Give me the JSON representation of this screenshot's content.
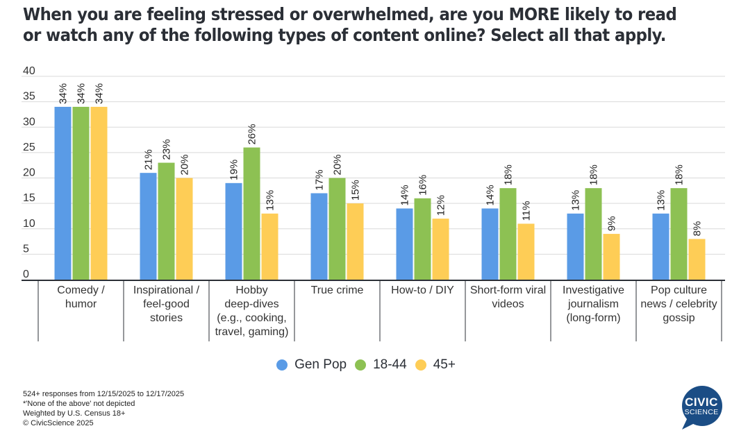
{
  "chart_data": {
    "type": "bar",
    "title": "When you are feeling stressed or overwhelmed, are you MORE likely to read or watch any of the following types of content online? Select all that apply.",
    "title_lines": [
      "When you are feeling stressed or overwhelmed, are you MORE likely to read",
      "or watch any of the following types of content online? Select all that apply."
    ],
    "xlabel": "",
    "ylabel": "",
    "ylim": [
      0,
      40
    ],
    "yticks": [
      0,
      5,
      10,
      15,
      20,
      25,
      30,
      35,
      40
    ],
    "grid": true,
    "legend_position": "bottom-center",
    "categories": [
      [
        "Comedy /",
        "humor"
      ],
      [
        "Inspirational /",
        "feel-good",
        "stories"
      ],
      [
        "Hobby",
        "deep-dives",
        "(e.g., cooking,",
        "travel, gaming)"
      ],
      [
        "True crime"
      ],
      [
        "How-to / DIY"
      ],
      [
        "Short-form viral",
        "videos"
      ],
      [
        "Investigative",
        "journalism",
        "(long-form)"
      ],
      [
        "Pop culture",
        "news / celebrity",
        "gossip"
      ]
    ],
    "series": [
      {
        "name": "Gen Pop",
        "color": "#5a9be6",
        "values": [
          34,
          21,
          19,
          17,
          14,
          14,
          13,
          13
        ]
      },
      {
        "name": "18-44",
        "color": "#8dc153",
        "values": [
          34,
          23,
          26,
          20,
          16,
          18,
          18,
          18
        ]
      },
      {
        "name": "45+",
        "color": "#fecd56",
        "values": [
          34,
          20,
          13,
          15,
          12,
          11,
          9,
          8
        ]
      }
    ],
    "data_label_suffix": "%"
  },
  "legend": [
    {
      "label": "Gen Pop",
      "color": "#5a9be6"
    },
    {
      "label": "18-44",
      "color": "#8dc153"
    },
    {
      "label": "45+",
      "color": "#fecd56"
    }
  ],
  "footnotes": [
    "524+ responses from 12/15/2025 to 12/17/2025",
    "*'None of the above' not depicted",
    "Weighted by U.S. Census 18+",
    "© CivicScience 2025"
  ],
  "logo": {
    "line1": "CIVIC",
    "line2": "SCIENCE",
    "color": "#1b4d85"
  }
}
